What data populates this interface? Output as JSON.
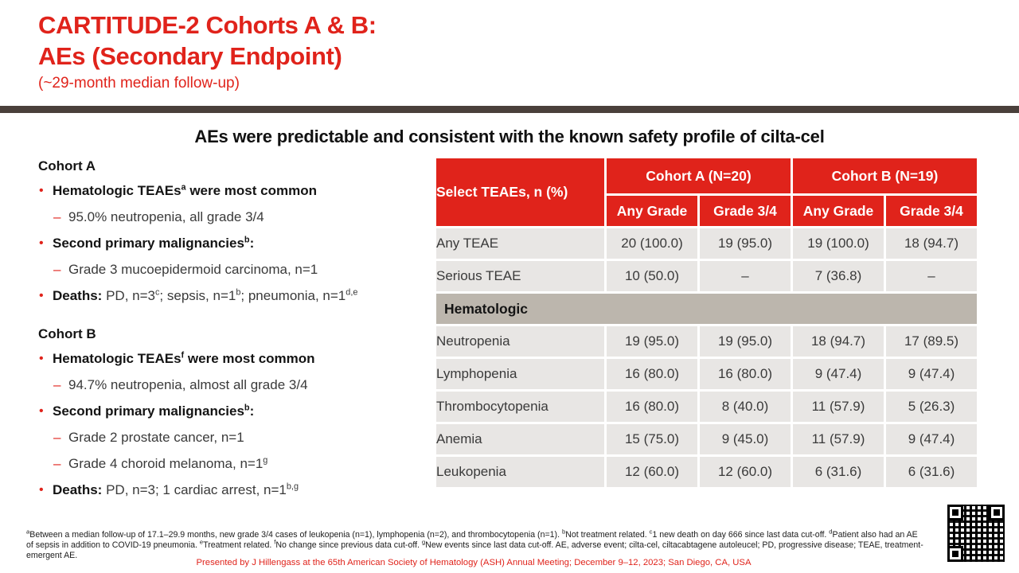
{
  "slide": {
    "title_line1": "CARTITUDE-2 Cohorts A & B:",
    "title_line2": "AEs (Secondary Endpoint)",
    "subtitle": "(~29-month median follow-up)",
    "headline": "AEs were predictable and consistent with the known safety profile of cilta-cel",
    "colors": {
      "accent_red": "#e0231b",
      "divider_bar": "#4a403b",
      "row_gray": "#e8e6e4",
      "section_taupe": "#bcb6ad"
    }
  },
  "cohortA": {
    "heading": "Cohort A",
    "b1": {
      "pre": "Hematologic TEAEs",
      "sup": "a",
      "post": " were most common"
    },
    "d1": {
      "text": "95.0% neutropenia, all grade 3/4"
    },
    "b2": {
      "pre": "Second primary malignancies",
      "sup": "b",
      "post": ":"
    },
    "d2": {
      "text": "Grade 3 mucoepidermoid carcinoma, n=1"
    },
    "b3": {
      "label": "Deaths:",
      "s1": " PD, n=3",
      "sup1": "c",
      "s2": "; sepsis, n=1",
      "sup2": "b",
      "s3": "; pneumonia, n=1",
      "sup3": "d,e"
    }
  },
  "cohortB": {
    "heading": "Cohort B",
    "b1": {
      "pre": "Hematologic TEAEs",
      "sup": "f",
      "post": " were most common"
    },
    "d1": {
      "text": "94.7% neutropenia, almost all grade 3/4"
    },
    "b2": {
      "pre": "Second primary malignancies",
      "sup": "b",
      "post": ":"
    },
    "d2": {
      "text": "Grade 2 prostate cancer, n=1"
    },
    "d3": {
      "text": "Grade 4 choroid melanoma, n=1",
      "sup": "g"
    },
    "b3": {
      "label": "Deaths:",
      "s1": " PD, n=3; 1 cardiac arrest, n=1",
      "sup1": "b,g"
    }
  },
  "table": {
    "corner": "Select TEAEs, n (%)",
    "groups": [
      "Cohort A (N=20)",
      "Cohort B (N=19)"
    ],
    "subs": [
      "Any Grade",
      "Grade 3/4",
      "Any Grade",
      "Grade 3/4"
    ],
    "section": "Hematologic",
    "rows": [
      {
        "label": "Any TEAE",
        "values": [
          "20 (100.0)",
          "19 (95.0)",
          "19 (100.0)",
          "18 (94.7)"
        ]
      },
      {
        "label": "Serious TEAE",
        "values": [
          "10 (50.0)",
          "–",
          "7 (36.8)",
          "–"
        ]
      },
      {
        "label": "Neutropenia",
        "values": [
          "19 (95.0)",
          "19 (95.0)",
          "18 (94.7)",
          "17 (89.5)"
        ]
      },
      {
        "label": "Lymphopenia",
        "values": [
          "16 (80.0)",
          "16 (80.0)",
          "9 (47.4)",
          "9 (47.4)"
        ]
      },
      {
        "label": "Thrombocytopenia",
        "values": [
          "16 (80.0)",
          "8 (40.0)",
          "11 (57.9)",
          "5 (26.3)"
        ]
      },
      {
        "label": "Anemia",
        "values": [
          "15 (75.0)",
          "9 (45.0)",
          "11 (57.9)",
          "9 (47.4)"
        ]
      },
      {
        "label": "Leukopenia",
        "values": [
          "12 (60.0)",
          "12 (60.0)",
          "6 (31.6)",
          "6 (31.6)"
        ]
      }
    ]
  },
  "footnotes": {
    "segments": [
      {
        "sup": "a"
      },
      {
        "text": "Between a median follow-up of 17.1–29.9 months, new grade 3/4 cases of leukopenia (n=1), lymphopenia (n=2), and thrombocytopenia (n=1). "
      },
      {
        "sup": "b"
      },
      {
        "text": "Not treatment related. "
      },
      {
        "sup": "c"
      },
      {
        "text": "1 new death on day 666 since last data cut-off. "
      },
      {
        "sup": "d"
      },
      {
        "text": "Patient also had an AE of sepsis in addition to COVID-19 pneumonia. "
      },
      {
        "sup": "e"
      },
      {
        "text": "Treatment related. "
      },
      {
        "sup": "f"
      },
      {
        "text": "No change since previous data cut-off. "
      },
      {
        "sup": "g"
      },
      {
        "text": "New events since last data cut-off. AE, adverse event; cilta-cel, ciltacabtagene autoleucel; PD, progressive disease; TEAE, treatment-emergent AE."
      }
    ]
  },
  "footer": {
    "presented": "Presented by J Hillengass at the 65th American Society of Hematology (ASH) Annual Meeting; December 9–12, 2023; San Diego, CA, USA"
  }
}
